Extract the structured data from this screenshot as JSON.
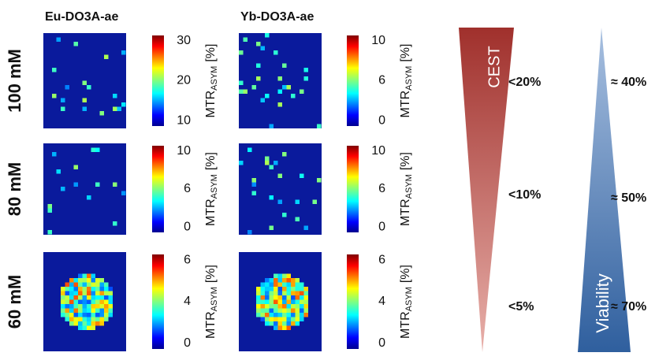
{
  "columns": [
    "Eu-DO3A-ae",
    "Yb-DO3A-ae"
  ],
  "colorbar_label": {
    "main": "MTR",
    "sub": "ASYM",
    "unit": "[%]"
  },
  "rows": [
    {
      "label": "100 mM",
      "panels": [
        {
          "ticks": [
            "30",
            "20",
            "10"
          ]
        },
        {
          "ticks": [
            "10",
            "6",
            "0"
          ]
        }
      ]
    },
    {
      "label": "80 mM",
      "panels": [
        {
          "ticks": [
            "10",
            "6",
            "0"
          ]
        },
        {
          "ticks": [
            "10",
            "6",
            "0"
          ]
        }
      ]
    },
    {
      "label": "60 mM",
      "panels": [
        {
          "ticks": [
            "6",
            "4",
            "0"
          ]
        },
        {
          "ticks": [
            "6",
            "4",
            "0"
          ]
        }
      ]
    }
  ],
  "cest": {
    "title": "CEST",
    "levels": [
      "<20%",
      "<10%",
      "<5%"
    ]
  },
  "viability": {
    "title": "Viability",
    "levels": [
      "≈ 40%",
      "≈ 50%",
      "≈ 70%"
    ]
  }
}
